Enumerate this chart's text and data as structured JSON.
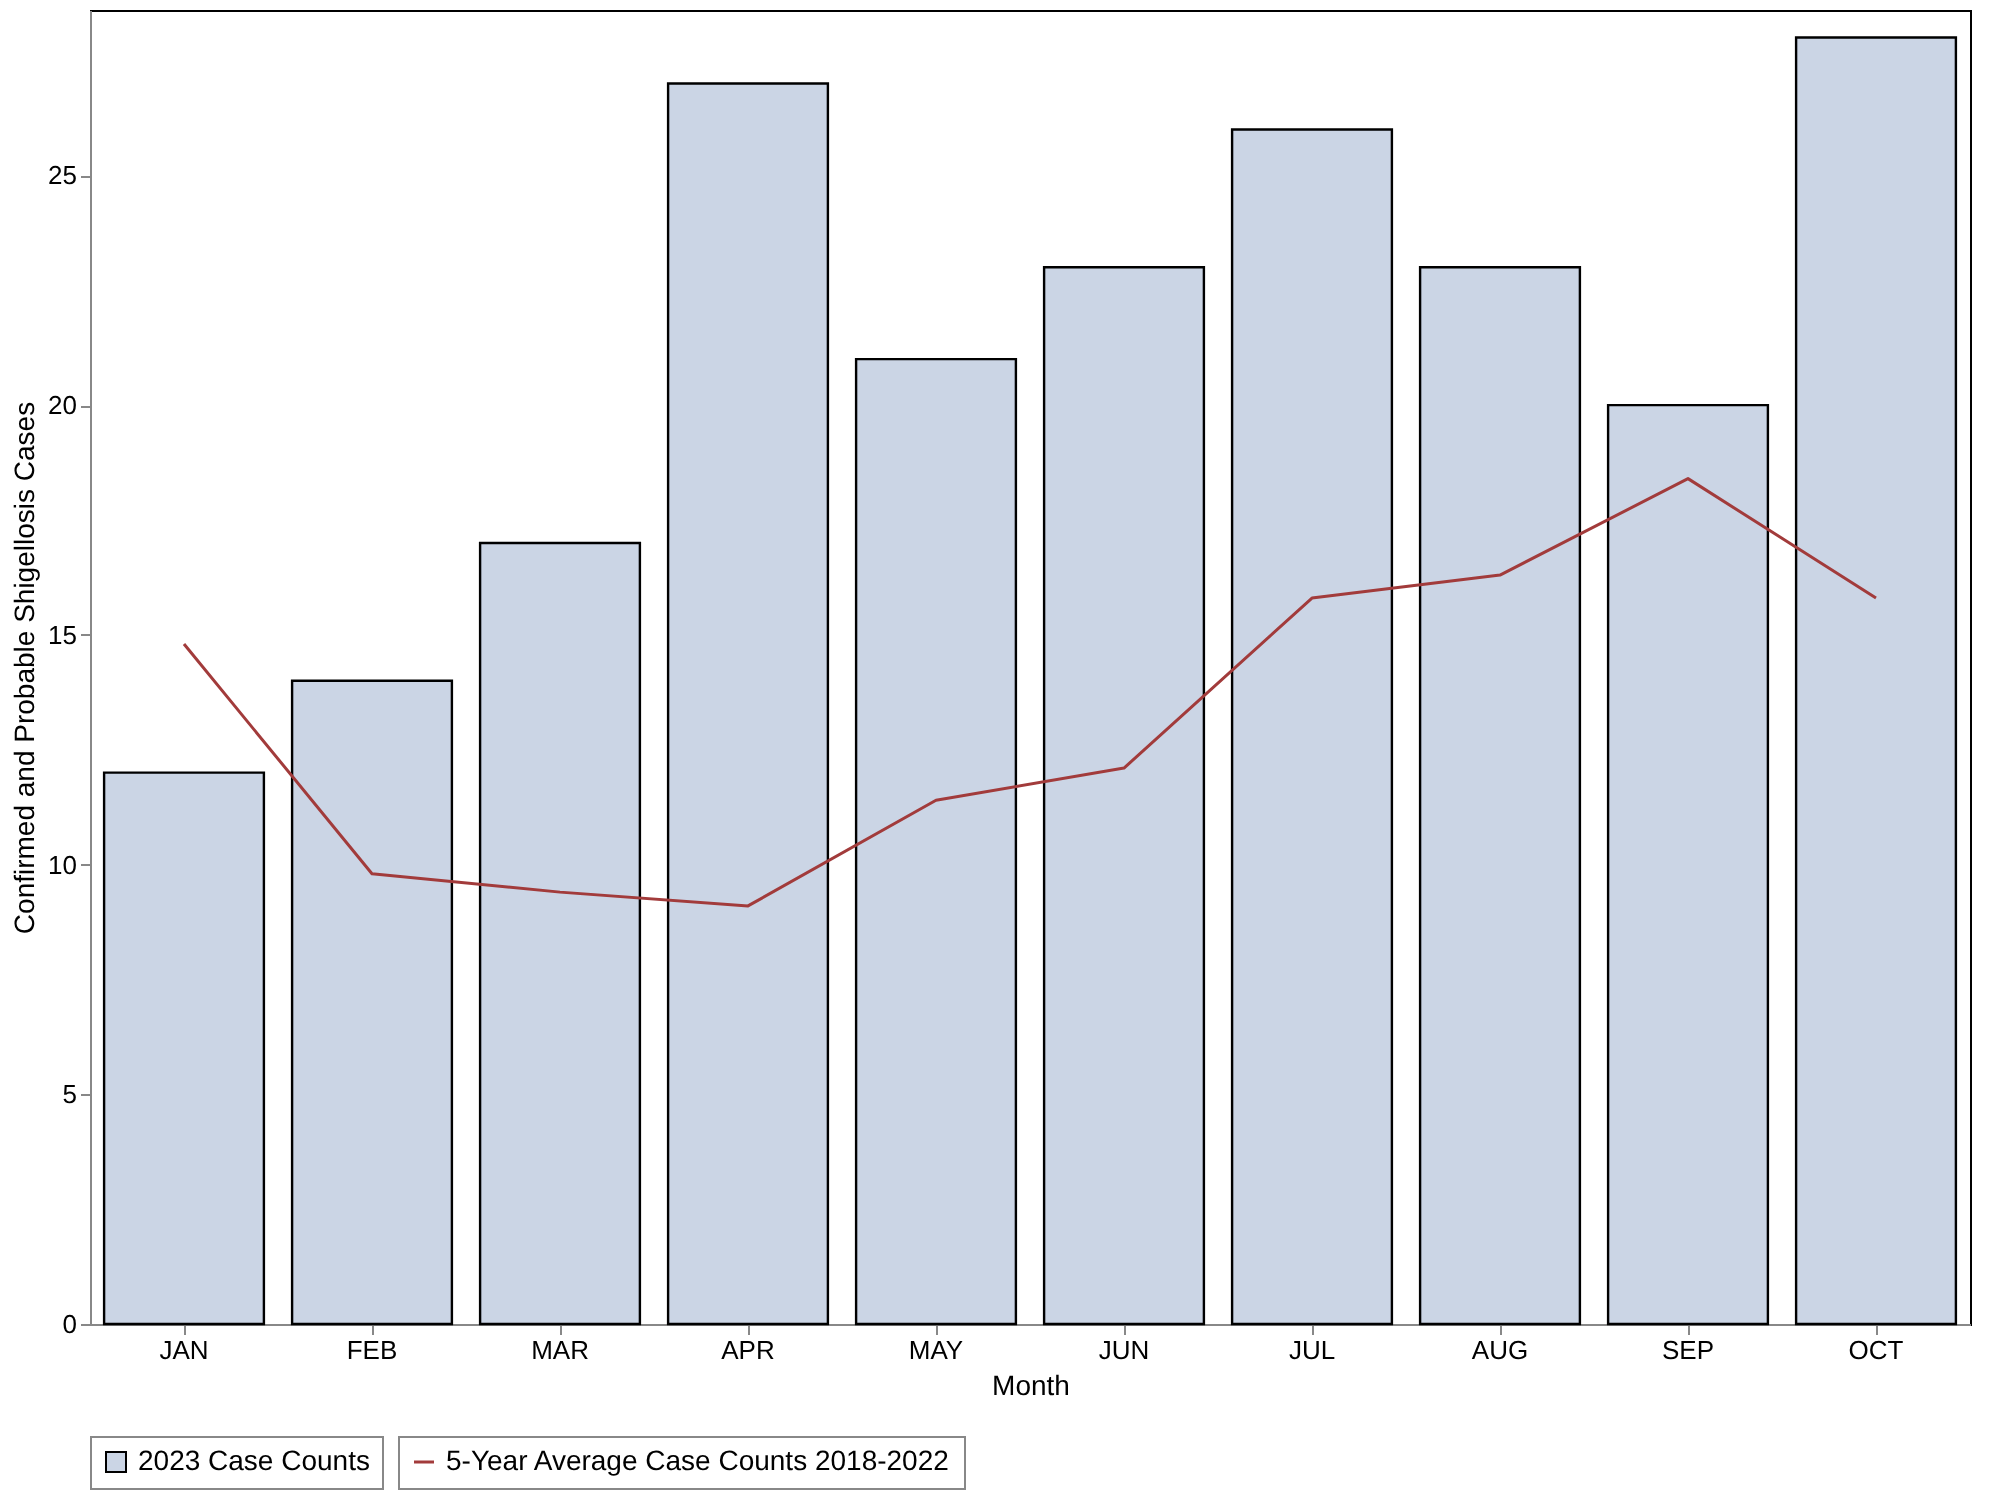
{
  "chart_data": {
    "type": "bar",
    "xlabel": "Month",
    "ylabel": "Confirmed and Probable Shigellosis Cases",
    "categories": [
      "JAN",
      "FEB",
      "MAR",
      "APR",
      "MAY",
      "JUN",
      "JUL",
      "AUG",
      "SEP",
      "OCT"
    ],
    "series": [
      {
        "name": "2023 Case Counts",
        "color": "#cbd5e5",
        "values": [
          12,
          14,
          17,
          27,
          21,
          23,
          26,
          23,
          20,
          28
        ]
      },
      {
        "name": "5-Year Average Case Counts 2018-2022",
        "type": "line",
        "color": "#a23b3b",
        "values": [
          14.8,
          9.8,
          9.4,
          9.1,
          11.4,
          12.1,
          15.8,
          16.3,
          18.4,
          15.8
        ]
      }
    ],
    "ylim": [
      0,
      28.6
    ],
    "yticks": [
      0,
      5,
      10,
      15,
      20,
      25
    ],
    "grid": false,
    "legend": "bottom",
    "line_style": "solid"
  }
}
